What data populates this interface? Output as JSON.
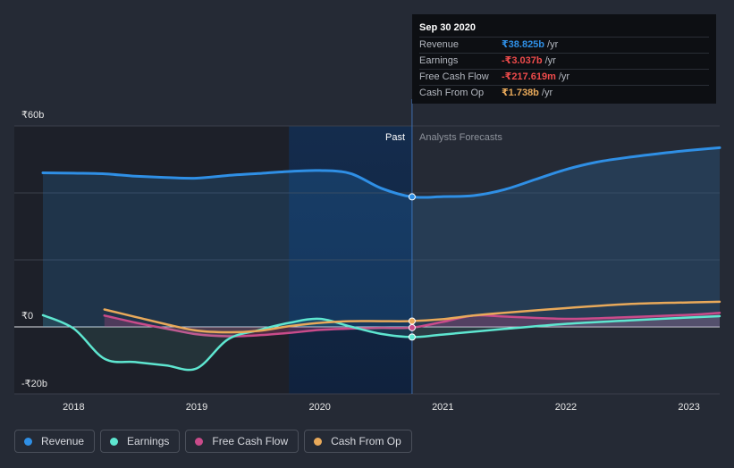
{
  "tooltip": {
    "date": "Sep 30 2020",
    "rows": [
      {
        "label": "Revenue",
        "value": "₹38.825b",
        "unit": "/yr",
        "color": "#2f8fe5"
      },
      {
        "label": "Earnings",
        "value": "-₹3.037b",
        "unit": "/yr",
        "color": "#ef4b4b"
      },
      {
        "label": "Free Cash Flow",
        "value": "-₹217.619m",
        "unit": "/yr",
        "color": "#ef4b4b"
      },
      {
        "label": "Cash From Op",
        "value": "₹1.738b",
        "unit": "/yr",
        "color": "#e8a95a"
      }
    ]
  },
  "legend": [
    {
      "label": "Revenue",
      "color": "#2f8fe5"
    },
    {
      "label": "Earnings",
      "color": "#5ee6d0"
    },
    {
      "label": "Free Cash Flow",
      "color": "#c94b8a"
    },
    {
      "label": "Cash From Op",
      "color": "#e8a95a"
    }
  ],
  "chart_data": {
    "type": "line",
    "title": "",
    "xlabel": "",
    "ylabel": "",
    "y_tick_labels": [
      {
        "value": 60,
        "label": "₹60b"
      },
      {
        "value": 0,
        "label": "₹0"
      },
      {
        "value": -20,
        "label": "-₹20b"
      }
    ],
    "ylim": [
      -20,
      60
    ],
    "xlim": [
      2017.75,
      2023.25
    ],
    "x_ticks": [
      2018,
      2019,
      2020,
      2021,
      2022,
      2023
    ],
    "divider_x": 2020.75,
    "past_label": "Past",
    "forecast_label": "Analysts Forecasts",
    "highlight_start_x": 2019.75,
    "series": [
      {
        "name": "Revenue",
        "color": "#2f8fe5",
        "area": true,
        "x": [
          2017.75,
          2018.0,
          2018.25,
          2018.5,
          2018.75,
          2019.0,
          2019.25,
          2019.5,
          2019.75,
          2020.0,
          2020.25,
          2020.5,
          2020.75,
          2021.0,
          2021.25,
          2021.5,
          2021.75,
          2022.0,
          2022.25,
          2022.5,
          2022.75,
          2023.0,
          2023.25
        ],
        "y": [
          46.0,
          45.9,
          45.7,
          45.0,
          44.6,
          44.4,
          45.2,
          45.8,
          46.4,
          46.7,
          45.8,
          41.4,
          38.825,
          38.9,
          39.2,
          41.0,
          44.0,
          47.0,
          49.2,
          50.6,
          51.7,
          52.7,
          53.5
        ]
      },
      {
        "name": "Earnings",
        "color": "#5ee6d0",
        "area": true,
        "x": [
          2017.75,
          2018.0,
          2018.25,
          2018.5,
          2018.75,
          2019.0,
          2019.25,
          2019.5,
          2019.75,
          2020.0,
          2020.25,
          2020.5,
          2020.75,
          2021.0,
          2021.5,
          2022.0,
          2022.5,
          2023.0,
          2023.25
        ],
        "y": [
          3.5,
          -0.5,
          -9.5,
          -10.5,
          -11.5,
          -12.4,
          -3.8,
          -1.0,
          1.2,
          2.4,
          0.1,
          -2.1,
          -3.037,
          -2.3,
          -0.6,
          0.9,
          1.9,
          2.8,
          3.2
        ]
      },
      {
        "name": "Free Cash Flow",
        "color": "#c94b8a",
        "area": true,
        "x": [
          2018.25,
          2018.5,
          2018.75,
          2019.0,
          2019.25,
          2019.5,
          2019.75,
          2020.0,
          2020.25,
          2020.5,
          2020.75,
          2021.0,
          2021.25,
          2021.5,
          2022.0,
          2022.5,
          2023.0,
          2023.25
        ],
        "y": [
          3.4,
          1.3,
          -0.5,
          -2.2,
          -2.8,
          -2.5,
          -1.8,
          -0.9,
          -0.5,
          -0.3,
          -0.218,
          1.5,
          3.4,
          3.1,
          2.4,
          2.9,
          3.6,
          4.2
        ]
      },
      {
        "name": "Cash From Op",
        "color": "#e8a95a",
        "area": false,
        "x": [
          2018.25,
          2018.5,
          2018.75,
          2019.0,
          2019.25,
          2019.5,
          2019.75,
          2020.0,
          2020.25,
          2020.5,
          2020.75,
          2021.0,
          2021.25,
          2021.5,
          2022.0,
          2022.5,
          2023.0,
          2023.25
        ],
        "y": [
          5.2,
          3.0,
          0.8,
          -1.1,
          -1.6,
          -1.2,
          0.2,
          1.2,
          1.7,
          1.7,
          1.738,
          2.3,
          3.4,
          4.2,
          5.6,
          6.8,
          7.3,
          7.5
        ]
      }
    ]
  }
}
